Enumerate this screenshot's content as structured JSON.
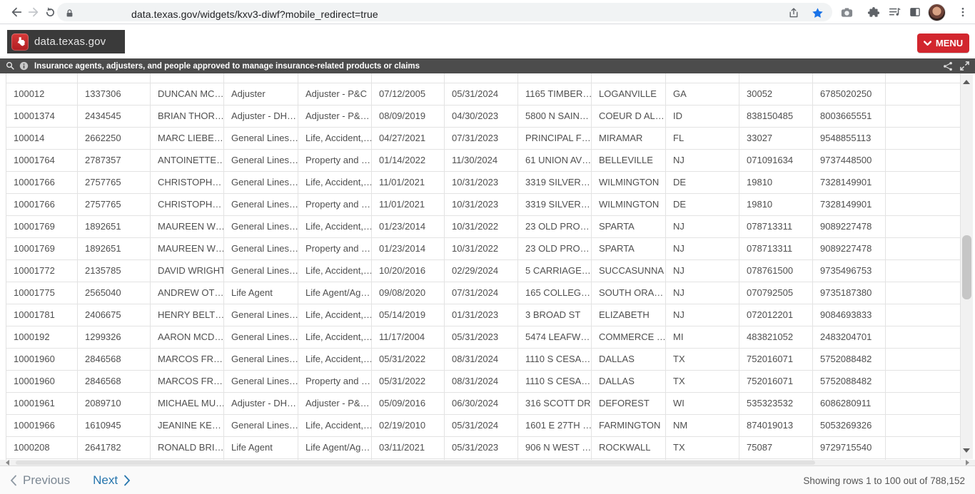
{
  "browser": {
    "url": "data.texas.gov/widgets/kxv3-diwf?mobile_redirect=true"
  },
  "site_header": {
    "brand": "data.texas.gov",
    "menu_label": "MENU"
  },
  "description_bar": {
    "text": "Insurance agents, adjusters, and people approved to manage insurance-related products or claims"
  },
  "table": {
    "rows": [
      [
        "100012",
        "1337306",
        "DUNCAN MC…",
        "Adjuster",
        "Adjuster - P&C",
        "07/12/2005",
        "05/31/2024",
        "1165 TIMBER…",
        "LOGANVILLE",
        "GA",
        "30052",
        "6785020250"
      ],
      [
        "10001374",
        "2434545",
        "BRIAN THOR…",
        "Adjuster - DH…",
        "Adjuster - P&…",
        "08/09/2019",
        "04/30/2023",
        "5800 N SAIN…",
        "COEUR D AL…",
        "ID",
        "838150485",
        "8003665551"
      ],
      [
        "100014",
        "2662250",
        "MARC LIEBE…",
        "General Lines…",
        "Life, Accident,…",
        "04/27/2021",
        "07/31/2023",
        "PRINCIPAL F…",
        "MIRAMAR",
        "FL",
        "33027",
        "9548855113"
      ],
      [
        "10001764",
        "2787357",
        "ANTOINETTE…",
        "General Lines…",
        "Property and …",
        "01/14/2022",
        "11/30/2024",
        "61 UNION AV…",
        "BELLEVILLE",
        "NJ",
        "071091634",
        "9737448500"
      ],
      [
        "10001766",
        "2757765",
        "CHRISTOPH…",
        "General Lines…",
        "Life, Accident,…",
        "11/01/2021",
        "10/31/2023",
        "3319 SILVER…",
        "WILMINGTON",
        "DE",
        "19810",
        "7328149901"
      ],
      [
        "10001766",
        "2757765",
        "CHRISTOPH…",
        "General Lines…",
        "Property and …",
        "11/01/2021",
        "10/31/2023",
        "3319 SILVER…",
        "WILMINGTON",
        "DE",
        "19810",
        "7328149901"
      ],
      [
        "10001769",
        "1892651",
        "MAUREEN W…",
        "General Lines…",
        "Life, Accident,…",
        "01/23/2014",
        "10/31/2022",
        "23 OLD PRO…",
        "SPARTA",
        "NJ",
        "078713311",
        "9089227478"
      ],
      [
        "10001769",
        "1892651",
        "MAUREEN W…",
        "General Lines…",
        "Property and …",
        "01/23/2014",
        "10/31/2022",
        "23 OLD PRO…",
        "SPARTA",
        "NJ",
        "078713311",
        "9089227478"
      ],
      [
        "10001772",
        "2135785",
        "DAVID WRIGHT",
        "General Lines…",
        "Life, Accident,…",
        "10/20/2016",
        "02/29/2024",
        "5 CARRIAGE…",
        "SUCCASUNNA",
        "NJ",
        "078761500",
        "9735496753"
      ],
      [
        "10001775",
        "2565040",
        "ANDREW OT…",
        "Life Agent",
        "Life Agent/Ag…",
        "09/08/2020",
        "07/31/2024",
        "165 COLLEG…",
        "SOUTH ORA…",
        "NJ",
        "070792505",
        "9735187380"
      ],
      [
        "10001781",
        "2406675",
        "HENRY BELT…",
        "General Lines…",
        "Life, Accident,…",
        "05/14/2019",
        "01/31/2023",
        "3 BROAD ST",
        "ELIZABETH",
        "NJ",
        "072012201",
        "9084693833"
      ],
      [
        "1000192",
        "1299326",
        "AARON MCD…",
        "General Lines…",
        "Life, Accident,…",
        "11/17/2004",
        "05/31/2023",
        "5474 LEAFW…",
        "COMMERCE …",
        "MI",
        "483821052",
        "2483204701"
      ],
      [
        "10001960",
        "2846568",
        "MARCOS FR…",
        "General Lines…",
        "Life, Accident,…",
        "05/31/2022",
        "08/31/2024",
        "1110 S CESA…",
        "DALLAS",
        "TX",
        "752016071",
        "5752088482"
      ],
      [
        "10001960",
        "2846568",
        "MARCOS FR…",
        "General Lines…",
        "Property and …",
        "05/31/2022",
        "08/31/2024",
        "1110 S CESA…",
        "DALLAS",
        "TX",
        "752016071",
        "5752088482"
      ],
      [
        "10001961",
        "2089710",
        "MICHAEL MU…",
        "Adjuster - DH…",
        "Adjuster - P&…",
        "05/09/2016",
        "06/30/2024",
        "316 SCOTT DR",
        "DEFOREST",
        "WI",
        "535323532",
        "6086280911"
      ],
      [
        "10001966",
        "1610945",
        "JEANINE KE…",
        "General Lines…",
        "Life, Accident,…",
        "02/19/2010",
        "05/31/2024",
        "1601 E 27TH …",
        "FARMINGTON",
        "NM",
        "874019013",
        "5053269326"
      ],
      [
        "1000208",
        "2641782",
        "RONALD BRI…",
        "Life Agent",
        "Life Agent/Ag…",
        "03/11/2021",
        "05/31/2023",
        "906 N WEST …",
        "ROCKWALL",
        "TX",
        "75087",
        "9729715540"
      ]
    ]
  },
  "pagination": {
    "previous_label": "Previous",
    "next_label": "Next",
    "status": "Showing rows 1 to 100 out of 788,152"
  },
  "colors": {
    "accent_red": "#d2262e",
    "link_blue": "#2776ad",
    "star_blue": "#1a73e8"
  }
}
